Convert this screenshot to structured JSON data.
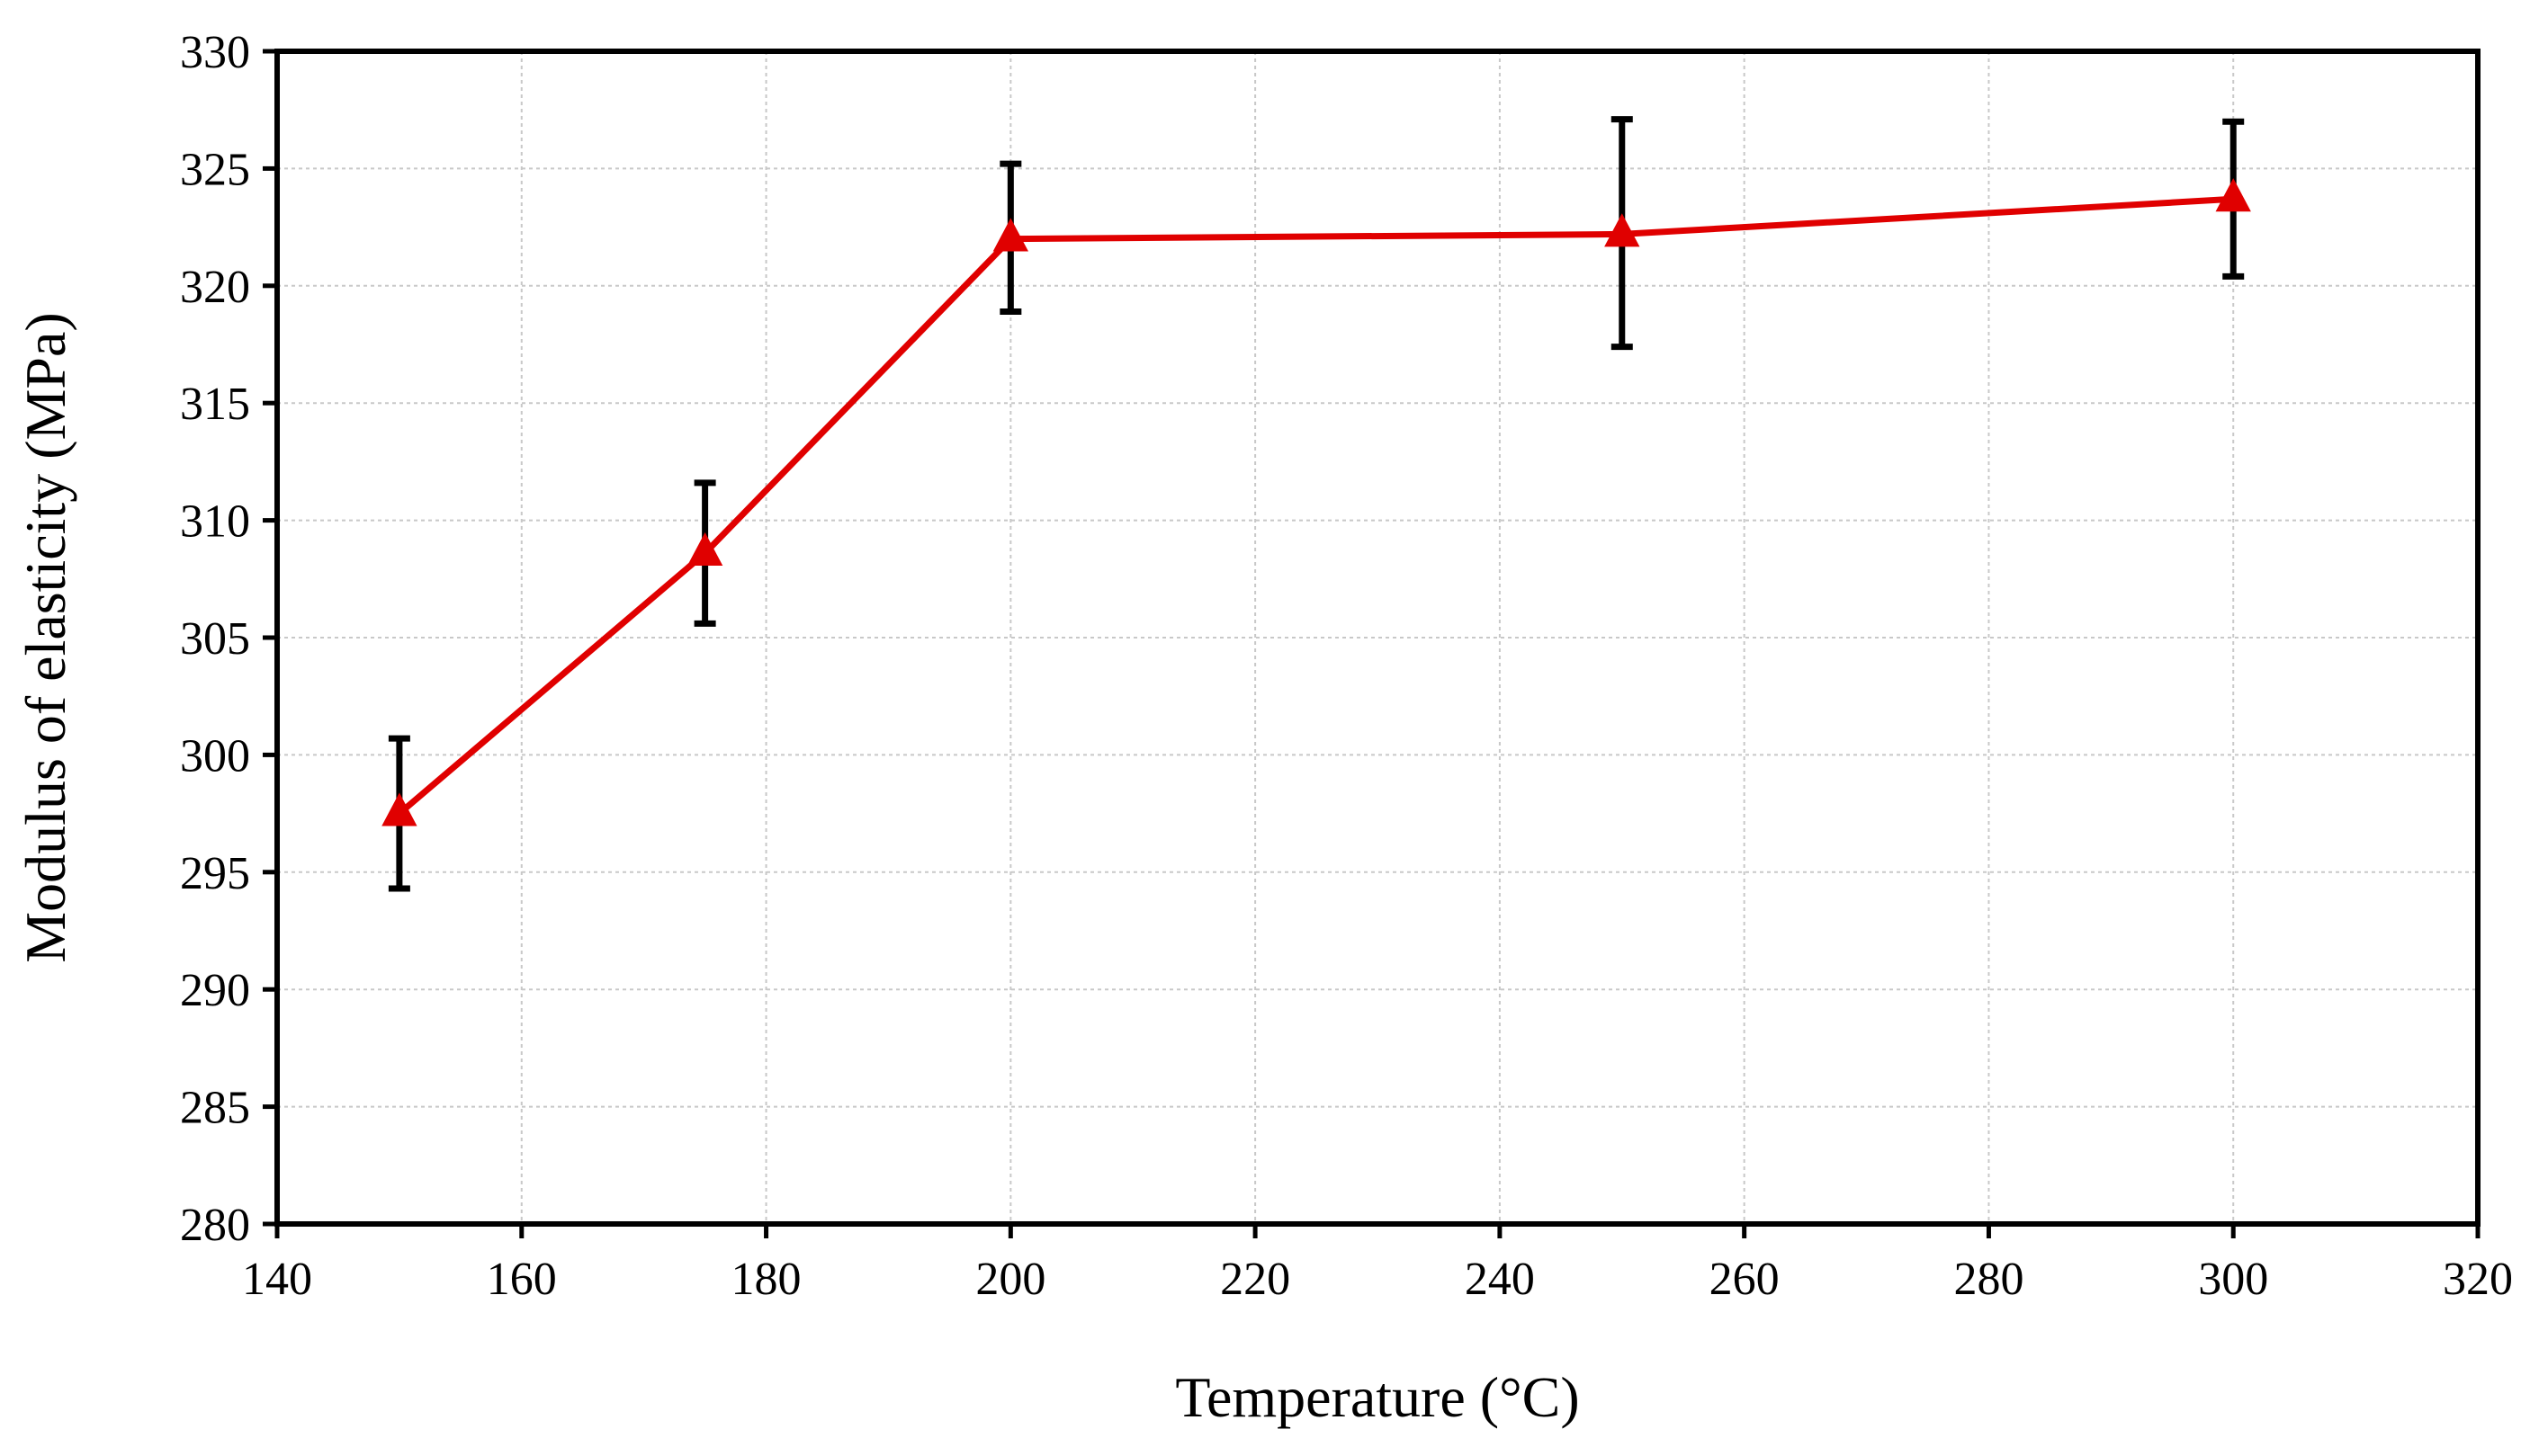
{
  "chart_data": {
    "type": "line",
    "title": "",
    "xlabel": "Temperature (°C)",
    "ylabel": "Modulus of elasticity (MPa)",
    "xlim": [
      140,
      320
    ],
    "ylim": [
      280,
      330
    ],
    "xticks": [
      140,
      160,
      180,
      200,
      220,
      240,
      260,
      280,
      300,
      320
    ],
    "yticks": [
      280,
      285,
      290,
      295,
      300,
      305,
      310,
      315,
      320,
      325,
      330
    ],
    "grid": true,
    "legend": "none",
    "series": [
      {
        "color": "#e00000",
        "marker": "triangle",
        "x": [
          150,
          175,
          200,
          250,
          300
        ],
        "y": [
          297.5,
          308.6,
          322.0,
          322.2,
          323.7
        ],
        "error_low": [
          294.3,
          305.6,
          318.9,
          317.4,
          320.4
        ],
        "error_high": [
          300.7,
          311.6,
          325.2,
          327.1,
          327.0
        ]
      }
    ]
  }
}
